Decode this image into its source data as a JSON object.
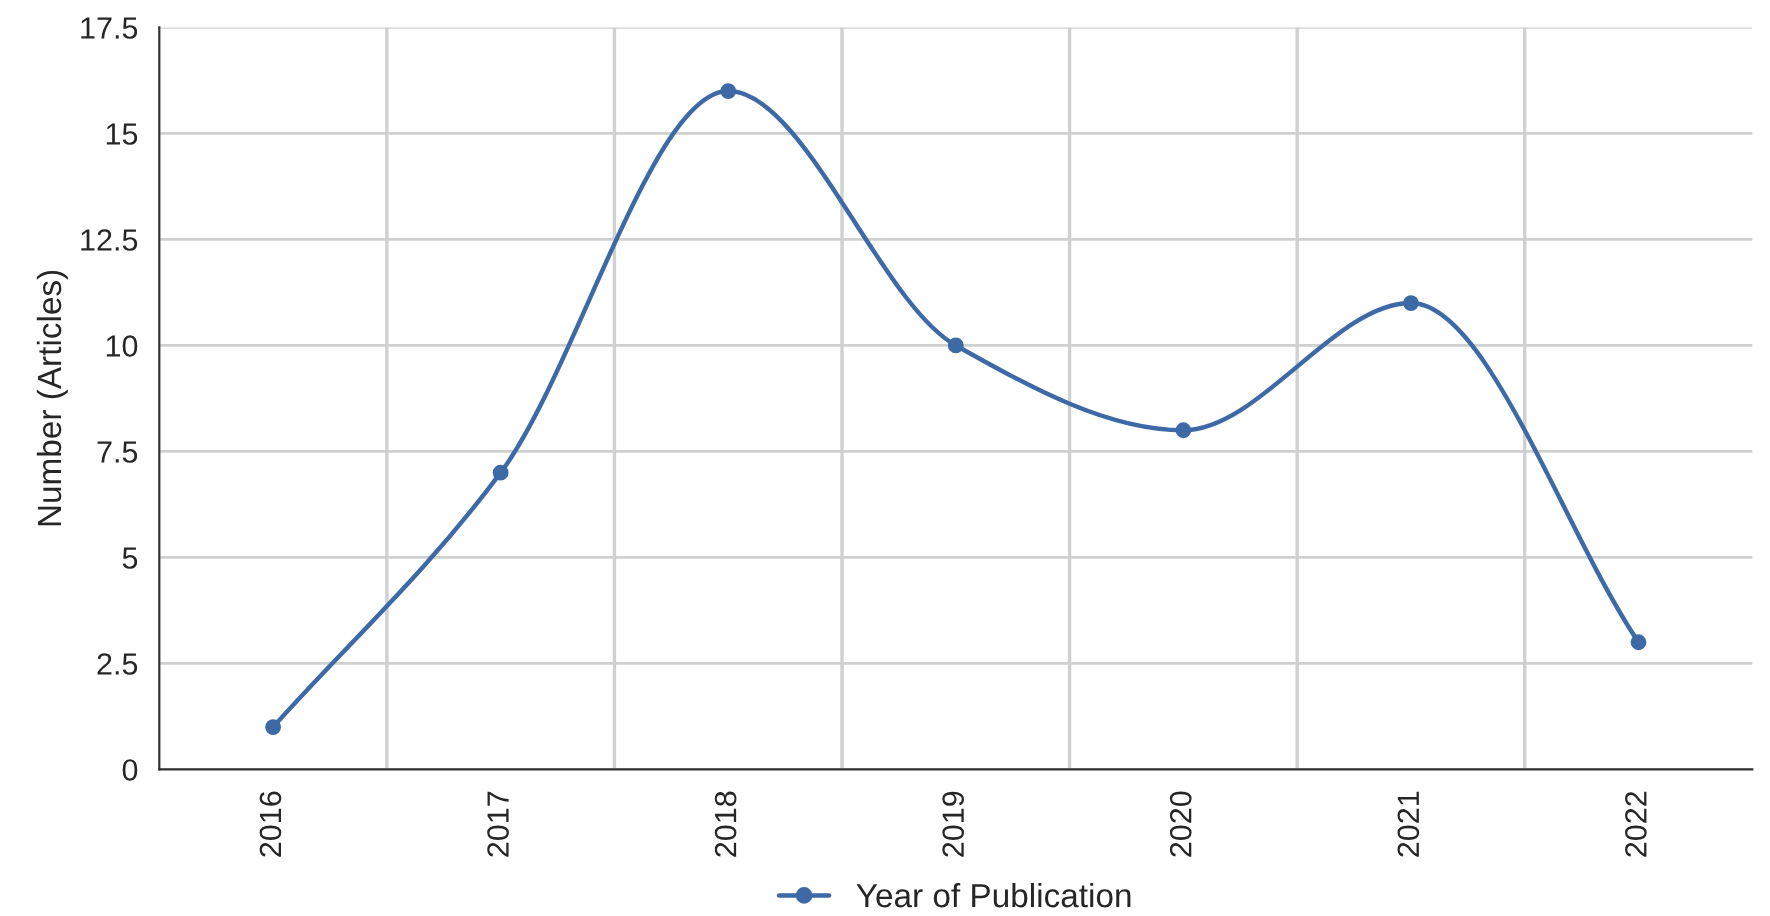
{
  "chart_data": {
    "type": "line",
    "ylabel": "Number (Articles)",
    "categories": [
      "2016",
      "2017",
      "2018",
      "2019",
      "2020",
      "2021",
      "2022"
    ],
    "series": [
      {
        "name": "Year of Publication",
        "color": "#3d6aa6",
        "values": [
          1,
          7,
          16,
          10,
          8,
          11,
          3
        ]
      }
    ],
    "ylim": [
      0,
      17.5
    ],
    "yticks": [
      0,
      2.5,
      5,
      7.5,
      10,
      12.5,
      15,
      17.5
    ],
    "grid": true,
    "legend": "bottom",
    "marker": "circle",
    "line_style": "solid"
  }
}
